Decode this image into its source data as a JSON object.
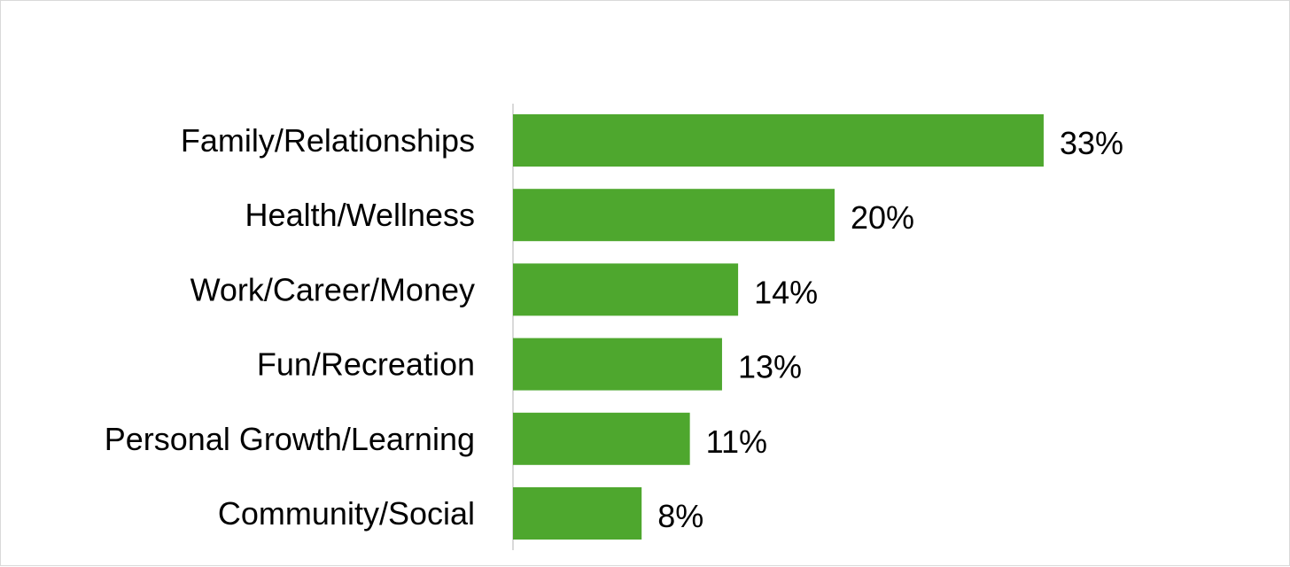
{
  "chart_data": {
    "type": "bar",
    "orientation": "horizontal",
    "categories": [
      "Family/Relationships",
      "Health/Wellness",
      "Work/Career/Money",
      "Fun/Recreation",
      "Personal Growth/Learning",
      "Community/Social"
    ],
    "values": [
      33,
      20,
      14,
      13,
      11,
      8
    ],
    "value_labels": [
      "33%",
      "20%",
      "14%",
      "13%",
      "11%",
      "8%"
    ],
    "unit": "%",
    "title": "",
    "xlabel": "",
    "ylabel": "",
    "xlim": [
      0,
      35
    ],
    "grid": false,
    "legend": "none",
    "colors": {
      "bar": "#4ea72e",
      "axis": "#d9d9d9",
      "text": "#000000"
    }
  }
}
